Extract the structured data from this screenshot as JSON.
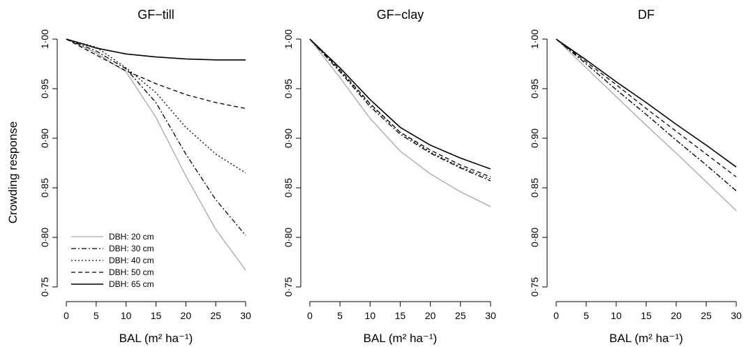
{
  "ylabel": "Crowding response",
  "chart_data": [
    {
      "type": "line",
      "title": "GF−till",
      "xlabel": "BAL (m² ha⁻¹)",
      "ylabel": "Crowding response",
      "xlim": [
        0,
        30
      ],
      "ylim": [
        0.75,
        1.0
      ],
      "x_ticks": [
        "0",
        "5",
        "10",
        "15",
        "20",
        "25",
        "30"
      ],
      "y_ticks": [
        "0·75",
        "0·80",
        "0·85",
        "0·90",
        "0·95",
        "1·00"
      ],
      "x": [
        0,
        5,
        10,
        15,
        20,
        25,
        30
      ],
      "series": [
        {
          "name": "DBH: 20 cm",
          "values": [
            1.0,
            0.986,
            0.967,
            0.921,
            0.862,
            0.808,
            0.767
          ]
        },
        {
          "name": "DBH: 30 cm",
          "values": [
            1.0,
            0.988,
            0.97,
            0.936,
            0.884,
            0.838,
            0.802
          ]
        },
        {
          "name": "DBH: 40 cm",
          "values": [
            1.0,
            0.992,
            0.971,
            0.946,
            0.911,
            0.884,
            0.865
          ]
        },
        {
          "name": "DBH: 50 cm",
          "values": [
            1.0,
            0.984,
            0.968,
            0.955,
            0.944,
            0.936,
            0.93
          ]
        },
        {
          "name": "DBH: 65 cm",
          "values": [
            1.0,
            0.991,
            0.985,
            0.982,
            0.98,
            0.979,
            0.979
          ]
        }
      ],
      "legend": "bottom-left"
    },
    {
      "type": "line",
      "title": "GF−clay",
      "xlabel": "BAL (m² ha⁻¹)",
      "xlim": [
        0,
        30
      ],
      "ylim": [
        0.75,
        1.0
      ],
      "x_ticks": [
        "0",
        "5",
        "10",
        "15",
        "20",
        "25",
        "30"
      ],
      "y_ticks": [
        "0·75",
        "0·80",
        "0·85",
        "0·90",
        "0·95",
        "1·00"
      ],
      "x": [
        0,
        5,
        10,
        15,
        20,
        25,
        30
      ],
      "series": [
        {
          "name": "DBH: 20 cm",
          "values": [
            1.0,
            0.961,
            0.92,
            0.887,
            0.864,
            0.846,
            0.831
          ]
        },
        {
          "name": "DBH: 30 cm",
          "values": [
            1.0,
            0.967,
            0.932,
            0.904,
            0.885,
            0.87,
            0.857
          ]
        },
        {
          "name": "DBH: 40 cm",
          "values": [
            1.0,
            0.968,
            0.934,
            0.906,
            0.886,
            0.871,
            0.859
          ]
        },
        {
          "name": "DBH: 50 cm",
          "values": [
            1.0,
            0.969,
            0.935,
            0.906,
            0.888,
            0.873,
            0.861
          ]
        },
        {
          "name": "DBH: 65 cm",
          "values": [
            1.0,
            0.971,
            0.939,
            0.911,
            0.893,
            0.88,
            0.869
          ]
        }
      ]
    },
    {
      "type": "line",
      "title": "DF",
      "xlabel": "BAL (m² ha⁻¹)",
      "xlim": [
        0,
        30
      ],
      "ylim": [
        0.75,
        1.0
      ],
      "x_ticks": [
        "0",
        "5",
        "10",
        "15",
        "20",
        "25",
        "30"
      ],
      "y_ticks": [
        "0·75",
        "0·80",
        "0·85",
        "0·90",
        "0·95",
        "1·00"
      ],
      "x": [
        0,
        5,
        10,
        15,
        20,
        25,
        30
      ],
      "series": [
        {
          "name": "DBH: 20 cm",
          "values": [
            1.0,
            0.971,
            0.942,
            0.913,
            0.885,
            0.856,
            0.827
          ]
        },
        {
          "name": "DBH: 30 cm",
          "values": [
            1.0,
            0.975,
            0.949,
            0.924,
            0.898,
            0.873,
            0.847
          ]
        },
        {
          "name": "DBH: 40 cm",
          "values": [
            1.0,
            0.975,
            0.949,
            0.924,
            0.898,
            0.873,
            0.847
          ]
        },
        {
          "name": "DBH: 50 cm",
          "values": [
            1.0,
            0.977,
            0.954,
            0.93,
            0.907,
            0.884,
            0.861
          ]
        },
        {
          "name": "DBH: 65 cm",
          "values": [
            1.0,
            0.979,
            0.957,
            0.936,
            0.914,
            0.893,
            0.871
          ]
        }
      ]
    }
  ],
  "series_styles": [
    {
      "color": "#a6a6a6",
      "dash": ""
    },
    {
      "color": "#000000",
      "dash": "7,3,2,3"
    },
    {
      "color": "#000000",
      "dash": "2,3"
    },
    {
      "color": "#000000",
      "dash": "6,4"
    },
    {
      "color": "#000000",
      "dash": ""
    }
  ]
}
